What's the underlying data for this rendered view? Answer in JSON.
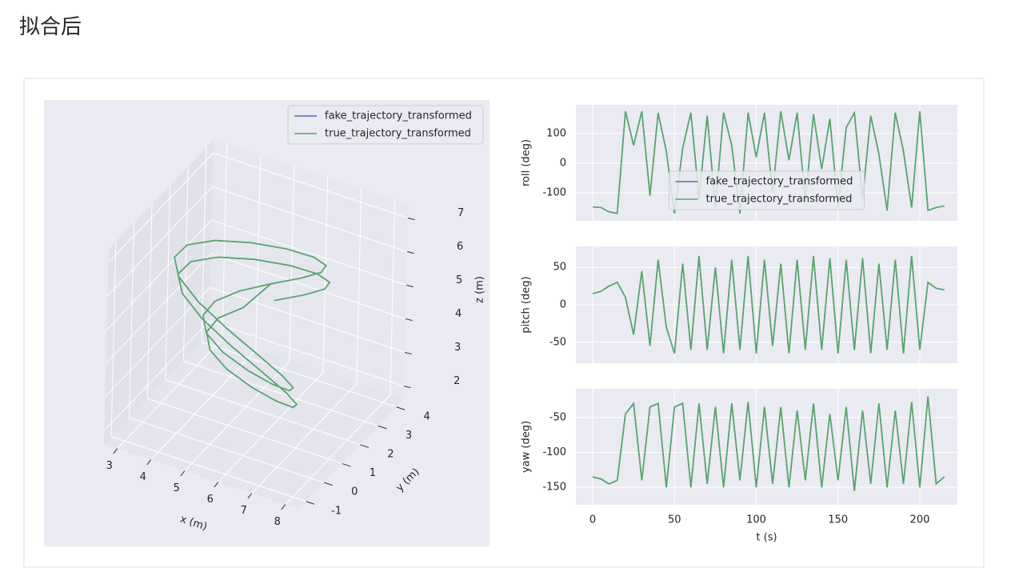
{
  "header": {
    "title": "拟合后"
  },
  "chart_data": [
    {
      "type": "line3d",
      "legend": "upper right",
      "xlabel": "x (m)",
      "ylabel": "y (m)",
      "zlabel": "z (m)",
      "xlim": [
        2.6,
        8.4
      ],
      "ylim": [
        -1.4,
        4.4
      ],
      "zlim": [
        1.6,
        7.4
      ],
      "xticks": [
        3,
        4,
        5,
        6,
        7,
        8
      ],
      "yticks": [
        -1,
        0,
        1,
        2,
        3,
        4
      ],
      "zticks": [
        2,
        3,
        4,
        5,
        6,
        7
      ],
      "series": [
        {
          "name": "fake_trajectory_transformed",
          "color": "#4c72b0",
          "x": [
            5.4,
            6.3,
            6.96,
            7.2,
            6.96,
            6.3,
            5.4,
            4.5,
            3.84,
            3.6,
            3.84,
            4.5,
            5.4,
            6.3,
            6.96,
            7.2,
            6.96,
            6.3,
            5.4,
            4.5,
            3.84,
            3.6,
            3.84,
            4.5,
            5.1,
            6.0,
            6.66,
            6.9,
            6.66,
            6.0,
            5.1,
            4.2,
            3.54,
            3.3,
            3.54,
            4.2,
            5.1,
            6.0,
            6.66,
            6.9,
            6.66,
            6.0,
            5.1,
            4.2,
            3.54,
            3.3,
            3.54,
            4.2,
            5.1
          ],
          "y": [
            2.7,
            2.66,
            2.54,
            2.35,
            2.1,
            1.81,
            1.5,
            1.19,
            0.9,
            0.65,
            0.46,
            0.34,
            0.3,
            0.34,
            0.46,
            0.65,
            0.9,
            1.19,
            1.5,
            1.81,
            2.1,
            2.35,
            2.54,
            2.66,
            3.05,
            3.01,
            2.89,
            2.7,
            2.45,
            2.16,
            1.85,
            1.54,
            1.25,
            1.0,
            0.81,
            0.69,
            0.65,
            0.69,
            0.81,
            1.0,
            1.25,
            1.54,
            1.85,
            2.16,
            2.45,
            2.7,
            2.89,
            3.01,
            3.05
          ],
          "z": [
            4.5,
            4.99,
            5.45,
            5.84,
            6.15,
            6.34,
            6.4,
            6.34,
            6.15,
            5.84,
            5.45,
            4.99,
            4.5,
            4.01,
            3.55,
            3.16,
            2.85,
            2.66,
            2.6,
            2.66,
            2.85,
            3.16,
            3.55,
            4.01,
            4.7,
            5.19,
            5.65,
            6.04,
            6.35,
            6.54,
            6.6,
            6.54,
            6.35,
            6.04,
            5.65,
            5.19,
            4.7,
            4.21,
            3.75,
            3.36,
            3.05,
            2.86,
            2.8,
            2.86,
            3.05,
            3.36,
            3.75,
            4.21,
            4.7
          ]
        },
        {
          "name": "true_trajectory_transformed",
          "color": "#55a868",
          "x": [
            5.4,
            6.3,
            6.96,
            7.2,
            6.96,
            6.3,
            5.4,
            4.5,
            3.84,
            3.6,
            3.84,
            4.5,
            5.4,
            6.3,
            6.96,
            7.2,
            6.96,
            6.3,
            5.4,
            4.5,
            3.84,
            3.6,
            3.84,
            4.5,
            5.1,
            6.0,
            6.66,
            6.9,
            6.66,
            6.0,
            5.1,
            4.2,
            3.54,
            3.3,
            3.54,
            4.2,
            5.1,
            6.0,
            6.66,
            6.9,
            6.66,
            6.0,
            5.1,
            4.2,
            3.54,
            3.3,
            3.54,
            4.2,
            5.1
          ],
          "y": [
            2.7,
            2.66,
            2.54,
            2.35,
            2.1,
            1.81,
            1.5,
            1.19,
            0.9,
            0.65,
            0.46,
            0.34,
            0.3,
            0.34,
            0.46,
            0.65,
            0.9,
            1.19,
            1.5,
            1.81,
            2.1,
            2.35,
            2.54,
            2.66,
            3.05,
            3.01,
            2.89,
            2.7,
            2.45,
            2.16,
            1.85,
            1.54,
            1.25,
            1.0,
            0.81,
            0.69,
            0.65,
            0.69,
            0.81,
            1.0,
            1.25,
            1.54,
            1.85,
            2.16,
            2.45,
            2.7,
            2.89,
            3.01,
            3.05
          ],
          "z": [
            4.5,
            4.99,
            5.45,
            5.84,
            6.15,
            6.34,
            6.4,
            6.34,
            6.15,
            5.84,
            5.45,
            4.99,
            4.5,
            4.01,
            3.55,
            3.16,
            2.85,
            2.66,
            2.6,
            2.66,
            2.85,
            3.16,
            3.55,
            4.01,
            4.7,
            5.19,
            5.65,
            6.04,
            6.35,
            6.54,
            6.6,
            6.54,
            6.35,
            6.04,
            5.65,
            5.19,
            4.7,
            4.21,
            3.75,
            3.36,
            3.05,
            2.86,
            2.8,
            2.86,
            3.05,
            3.36,
            3.75,
            4.21,
            4.7
          ]
        }
      ]
    },
    {
      "type": "line",
      "ylabel": "roll (deg)",
      "legend": "lower center",
      "xlim": [
        -10.3,
        223
      ],
      "ylim": [
        -195,
        197
      ],
      "yticks": [
        -100,
        0,
        100
      ],
      "x": [
        0,
        5,
        10,
        15,
        20,
        25,
        30,
        35,
        40,
        45,
        50,
        55,
        60,
        65,
        70,
        75,
        80,
        85,
        90,
        95,
        100,
        105,
        110,
        115,
        120,
        125,
        130,
        135,
        140,
        145,
        150,
        155,
        160,
        165,
        170,
        175,
        180,
        185,
        190,
        195,
        200,
        205,
        210,
        215
      ],
      "series": [
        {
          "name": "fake_trajectory_transformed",
          "color": "#4c72b0",
          "values": [
            -148,
            -150,
            -165,
            -170,
            175,
            60,
            175,
            -110,
            170,
            40,
            -170,
            50,
            170,
            -120,
            160,
            -150,
            170,
            60,
            -170,
            170,
            20,
            170,
            -100,
            175,
            10,
            170,
            -130,
            165,
            -20,
            150,
            -150,
            120,
            170,
            -120,
            160,
            30,
            -160,
            170,
            40,
            -150,
            175,
            -160,
            -150,
            -145
          ]
        },
        {
          "name": "true_trajectory_transformed",
          "color": "#55a868",
          "values": [
            -148,
            -150,
            -165,
            -170,
            175,
            60,
            175,
            -110,
            170,
            40,
            -170,
            50,
            170,
            -120,
            160,
            -150,
            170,
            60,
            -170,
            170,
            20,
            170,
            -100,
            175,
            10,
            170,
            -130,
            165,
            -20,
            150,
            -150,
            120,
            170,
            -120,
            160,
            30,
            -160,
            170,
            40,
            -150,
            175,
            -160,
            -150,
            -145
          ]
        }
      ]
    },
    {
      "type": "line",
      "ylabel": "pitch (deg)",
      "xlim": [
        -10.3,
        223
      ],
      "ylim": [
        -78,
        78
      ],
      "yticks": [
        -50,
        0,
        50
      ],
      "x": [
        0,
        5,
        10,
        15,
        20,
        25,
        30,
        35,
        40,
        45,
        50,
        55,
        60,
        65,
        70,
        75,
        80,
        85,
        90,
        95,
        100,
        105,
        110,
        115,
        120,
        125,
        130,
        135,
        140,
        145,
        150,
        155,
        160,
        165,
        170,
        175,
        180,
        185,
        190,
        195,
        200,
        205,
        210,
        215
      ],
      "series": [
        {
          "name": "fake_trajectory_transformed",
          "color": "#4c72b0",
          "values": [
            15,
            18,
            25,
            30,
            10,
            -40,
            45,
            -55,
            60,
            -30,
            -65,
            55,
            -60,
            65,
            -60,
            50,
            -65,
            60,
            -60,
            65,
            -65,
            60,
            -55,
            55,
            -65,
            60,
            -60,
            65,
            -60,
            62,
            -65,
            60,
            -60,
            62,
            -65,
            55,
            -60,
            60,
            -65,
            65,
            -60,
            30,
            22,
            20
          ]
        },
        {
          "name": "true_trajectory_transformed",
          "color": "#55a868",
          "values": [
            15,
            18,
            25,
            30,
            10,
            -40,
            45,
            -55,
            60,
            -30,
            -65,
            55,
            -60,
            65,
            -60,
            50,
            -65,
            60,
            -60,
            65,
            -65,
            60,
            -55,
            55,
            -65,
            60,
            -60,
            65,
            -60,
            62,
            -65,
            60,
            -60,
            62,
            -65,
            55,
            -60,
            60,
            -65,
            65,
            -60,
            30,
            22,
            20
          ]
        }
      ]
    },
    {
      "type": "line",
      "ylabel": "yaw (deg)",
      "xlabel": "t (s)",
      "xlim": [
        -10.3,
        223
      ],
      "ylim": [
        -175,
        -9
      ],
      "yticks": [
        -150,
        -100,
        -50
      ],
      "xticks": [
        0,
        50,
        100,
        150,
        200
      ],
      "x": [
        0,
        5,
        10,
        15,
        20,
        25,
        30,
        35,
        40,
        45,
        50,
        55,
        60,
        65,
        70,
        75,
        80,
        85,
        90,
        95,
        100,
        105,
        110,
        115,
        120,
        125,
        130,
        135,
        140,
        145,
        150,
        155,
        160,
        165,
        170,
        175,
        180,
        185,
        190,
        195,
        200,
        205,
        210,
        215
      ],
      "series": [
        {
          "name": "fake_trajectory_transformed",
          "color": "#4c72b0",
          "values": [
            -135,
            -138,
            -145,
            -140,
            -45,
            -30,
            -140,
            -35,
            -30,
            -150,
            -35,
            -30,
            -150,
            -30,
            -145,
            -35,
            -150,
            -30,
            -140,
            -28,
            -150,
            -35,
            -145,
            -35,
            -150,
            -40,
            -140,
            -30,
            -150,
            -45,
            -140,
            -35,
            -155,
            -40,
            -145,
            -30,
            -150,
            -40,
            -145,
            -28,
            -150,
            -20,
            -145,
            -135
          ]
        },
        {
          "name": "true_trajectory_transformed",
          "color": "#55a868",
          "values": [
            -135,
            -138,
            -145,
            -140,
            -45,
            -30,
            -140,
            -35,
            -30,
            -150,
            -35,
            -30,
            -150,
            -30,
            -145,
            -35,
            -150,
            -30,
            -140,
            -28,
            -150,
            -35,
            -145,
            -35,
            -150,
            -40,
            -140,
            -30,
            -150,
            -45,
            -140,
            -35,
            -155,
            -40,
            -145,
            -30,
            -150,
            -40,
            -145,
            -28,
            -150,
            -20,
            -145,
            -135
          ]
        }
      ]
    }
  ]
}
